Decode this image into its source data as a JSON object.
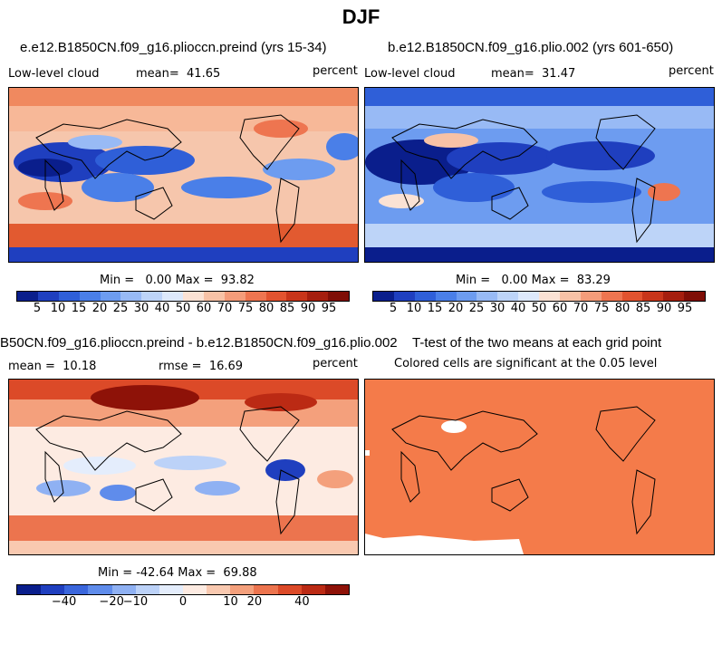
{
  "figure_title": "DJF",
  "panels": {
    "p1": {
      "title": "e.e12.B1850CN.f09_g16.plioccn.preind (yrs 15-34)",
      "left_label": "Low-level cloud",
      "mean_label": "mean=  41.65",
      "units": "percent",
      "minmax": "Min =   0.00 Max =  93.82"
    },
    "p2": {
      "title": "b.e12.B1850CN.f09_g16.plio.002 (yrs 601-650)",
      "left_label": "Low-level cloud",
      "mean_label": "mean=  31.47",
      "units": "percent",
      "minmax": "Min =   0.00 Max =  83.29"
    },
    "p3": {
      "title": "B50CN.f09_g16.plioccn.preind - b.e12.B1850CN.f09_g16.plio.002",
      "mean_label": "mean =  10.18",
      "rmse_label": "rmse =  16.69",
      "units": "percent",
      "minmax": "Min = -42.64 Max =  69.88"
    },
    "p4": {
      "title": "T-test of the two means at each grid point",
      "subtitle": "Colored cells are significant at the 0.05 level"
    }
  },
  "colorbar_abs": {
    "tick_labels": [
      "5",
      "10",
      "15",
      "20",
      "25",
      "30",
      "40",
      "50",
      "60",
      "70",
      "75",
      "80",
      "85",
      "90",
      "95"
    ],
    "colors": [
      "#0a1e8c",
      "#1f3fbf",
      "#2f5fd8",
      "#4a7fe8",
      "#6d9cf0",
      "#98baf5",
      "#bdd4f8",
      "#dde9fb",
      "#fbe2d4",
      "#f8c2a6",
      "#f49c7a",
      "#ee7550",
      "#e2532f",
      "#c8351a",
      "#a51e0e",
      "#7f0e06"
    ]
  },
  "colorbar_diff": {
    "tick_labels": [
      "−40",
      "−20",
      "−10",
      "0",
      "10",
      "20",
      "40"
    ],
    "colors": [
      "#0a1e8c",
      "#1f3fbf",
      "#3a66dc",
      "#5f8ceb",
      "#8fb1f3",
      "#bcd2f8",
      "#e4edfc",
      "#fdebe2",
      "#f9c9b0",
      "#f4a07c",
      "#ec744e",
      "#dc4a28",
      "#bb2a14",
      "#8e1208"
    ]
  },
  "ttest_color": "#f47b4a"
}
